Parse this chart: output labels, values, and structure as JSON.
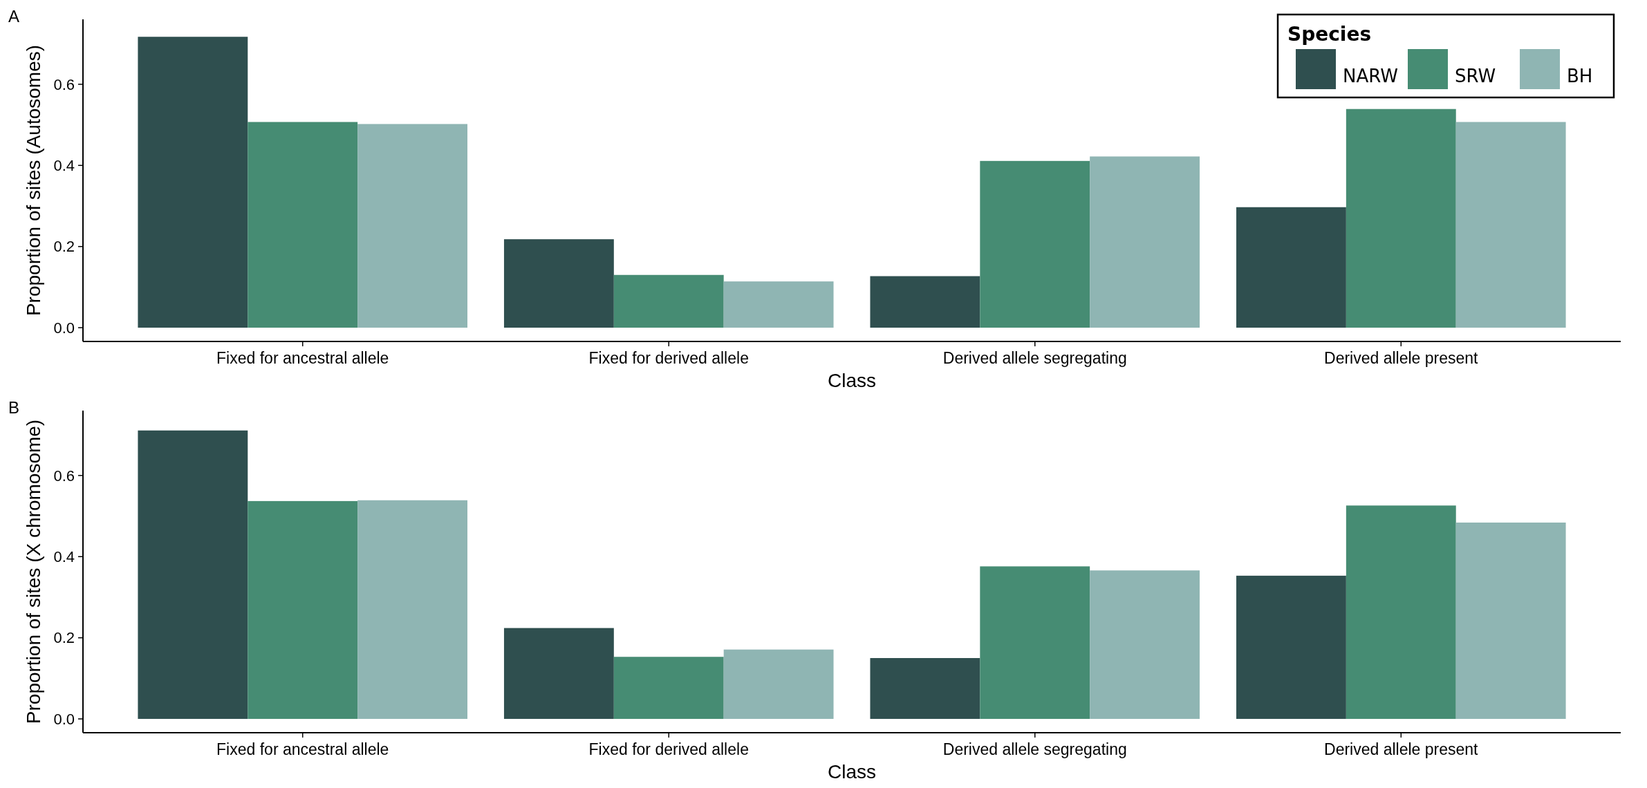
{
  "chart_data": [
    {
      "type": "bar",
      "title": "A",
      "xlabel": "Class",
      "ylabel": "Proportion of sites (Autosomes)",
      "categories": [
        "Fixed for ancestral allele",
        "Fixed for derived allele",
        "Derived allele segregating",
        "Derived allele present"
      ],
      "series": [
        {
          "name": "NARW",
          "color": "#2f4f4f",
          "values": [
            0.717,
            0.218,
            0.127,
            0.297
          ]
        },
        {
          "name": "SRW",
          "color": "#468c73",
          "values": [
            0.507,
            0.13,
            0.411,
            0.539
          ]
        },
        {
          "name": "BH",
          "color": "#8fb5b3",
          "values": [
            0.502,
            0.114,
            0.422,
            0.507
          ]
        }
      ],
      "ylim": [
        -0.034,
        0.76
      ],
      "yticks": [
        {
          "value": 0,
          "label": "0.0"
        },
        0.2,
        0.4,
        0.6
      ],
      "grid": false,
      "legend": "top right",
      "legend_title": "Species"
    },
    {
      "type": "bar",
      "title": "B",
      "xlabel": "Class",
      "ylabel": "Proportion of sites (X chromosome)",
      "categories": [
        "Fixed for ancestral allele",
        "Fixed for derived allele",
        "Derived allele segregating",
        "Derived allele present"
      ],
      "series": [
        {
          "color": "#2f4f4f",
          "values": [
            0.711,
            0.224,
            0.15,
            0.353
          ]
        },
        {
          "color": "#468c73",
          "values": [
            0.537,
            0.153,
            0.376,
            0.526
          ]
        },
        {
          "color": "#8fb5b3",
          "values": [
            0.539,
            0.171,
            0.366,
            0.484
          ]
        }
      ],
      "ylim": [
        -0.034,
        0.76
      ],
      "yticks": [
        {
          "value": 0,
          "label": "0.0"
        },
        0.2,
        0.4,
        0.6
      ],
      "grid": false,
      "legend": false
    }
  ]
}
